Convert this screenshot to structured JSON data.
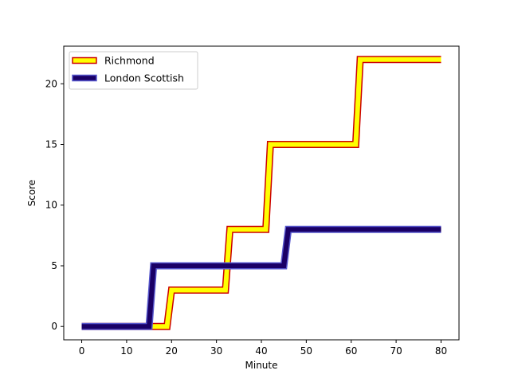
{
  "chart_data": {
    "type": "line",
    "title": "",
    "xlabel": "Minute",
    "ylabel": "Score",
    "xlim": [
      -4,
      84
    ],
    "ylim": [
      -1.1,
      23.1
    ],
    "xticks": [
      0,
      10,
      20,
      30,
      40,
      50,
      60,
      70,
      80
    ],
    "yticks": [
      0,
      5,
      10,
      15,
      20
    ],
    "grid": false,
    "legend_position": "top-left",
    "series": [
      {
        "name": "Richmond",
        "fill_color": "#ffff00",
        "edge_color": "#cc0000",
        "x": [
          0,
          19,
          20,
          32,
          33,
          41,
          42,
          61,
          62,
          80
        ],
        "y": [
          0,
          0,
          3,
          3,
          8,
          8,
          15,
          15,
          22,
          22
        ]
      },
      {
        "name": "London Scottish",
        "fill_color": "#1a0066",
        "edge_color": "#5555cc",
        "x": [
          0,
          15,
          16,
          45,
          46,
          80
        ],
        "y": [
          0,
          0,
          5,
          5,
          8,
          8
        ]
      }
    ]
  }
}
